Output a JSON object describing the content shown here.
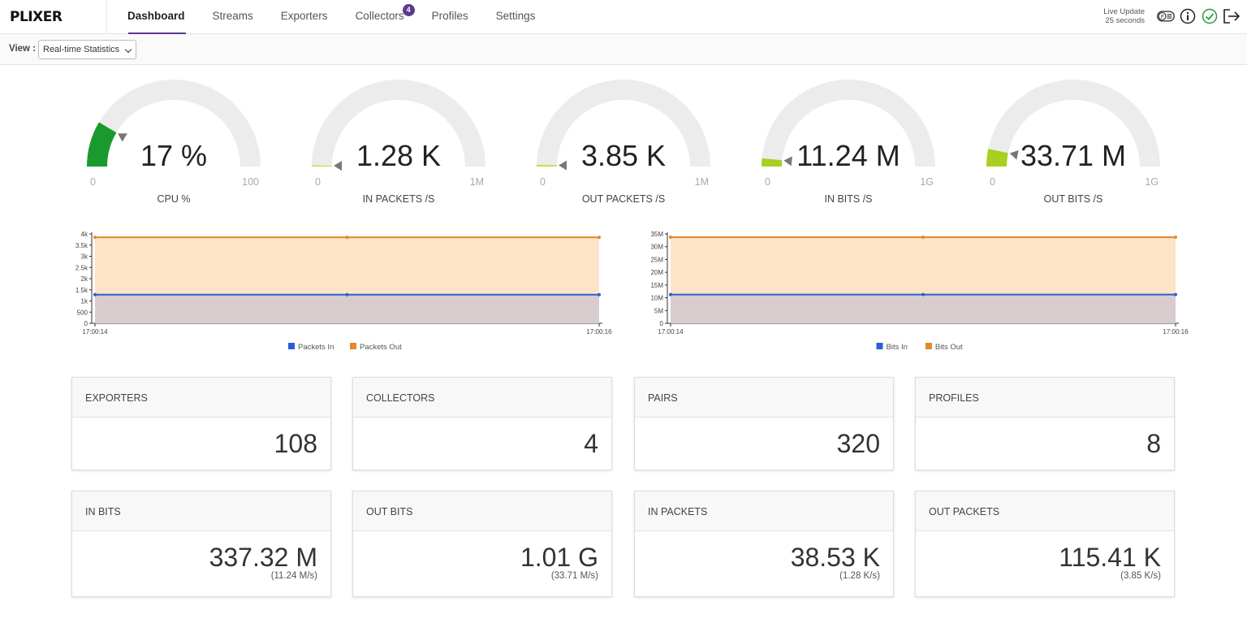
{
  "app": {
    "logo": "PLIXER"
  },
  "nav": {
    "items": [
      {
        "label": "Dashboard",
        "active": true
      },
      {
        "label": "Streams"
      },
      {
        "label": "Exporters"
      },
      {
        "label": "Collectors",
        "badge": "4"
      },
      {
        "label": "Profiles"
      },
      {
        "label": "Settings"
      }
    ]
  },
  "header": {
    "live_update_label": "Live Update",
    "live_update_value": "25 seconds",
    "icons": [
      "plugin-icon",
      "info-icon",
      "check-circle-icon",
      "logout-icon"
    ]
  },
  "view": {
    "label": "View :",
    "selected": "Real-time Statistics"
  },
  "gauges": [
    {
      "value": "17 %",
      "min": "0",
      "max": "100",
      "label": "CPU %",
      "fraction": 0.17,
      "color": "#1a9a2e"
    },
    {
      "value": "1.28 K",
      "min": "0",
      "max": "1M",
      "label": "IN PACKETS /S",
      "fraction": 0.004,
      "color": "#c8d840"
    },
    {
      "value": "3.85 K",
      "min": "0",
      "max": "1M",
      "label": "OUT PACKETS /S",
      "fraction": 0.006,
      "color": "#c8d840"
    },
    {
      "value": "11.24 M",
      "min": "0",
      "max": "1G",
      "label": "IN BITS /S",
      "fraction": 0.03,
      "color": "#a8d020"
    },
    {
      "value": "33.71 M",
      "min": "0",
      "max": "1G",
      "label": "OUT BITS /S",
      "fraction": 0.065,
      "color": "#a8d020"
    }
  ],
  "chart_data": [
    {
      "type": "area",
      "x": [
        "17:00:14",
        "17:00:15",
        "17:00:16"
      ],
      "x_tick_labels": [
        "17:00:14",
        "17:00:16"
      ],
      "y_ticks": [
        "0",
        "500",
        "1k",
        "1.5k",
        "2k",
        "2.5k",
        "3k",
        "3.5k",
        "4k"
      ],
      "ylim": [
        0,
        4000
      ],
      "series": [
        {
          "name": "Packets In",
          "values": [
            1280,
            1280,
            1280
          ],
          "color": "#2a5fd0"
        },
        {
          "name": "Packets Out",
          "values": [
            3850,
            3850,
            3850
          ],
          "color": "#e08a2a"
        }
      ],
      "legend": "bottom"
    },
    {
      "type": "area",
      "x": [
        "17:00:14",
        "17:00:15",
        "17:00:16"
      ],
      "x_tick_labels": [
        "17:00:14",
        "17:00:16"
      ],
      "y_ticks": [
        "0",
        "5M",
        "10M",
        "15M",
        "20M",
        "25M",
        "30M",
        "35M"
      ],
      "ylim": [
        0,
        35000000
      ],
      "series": [
        {
          "name": "Bits In",
          "values": [
            11240000,
            11240000,
            11240000
          ],
          "color": "#2a5fd0"
        },
        {
          "name": "Bits Out",
          "values": [
            33710000,
            33710000,
            33710000
          ],
          "color": "#e08a2a"
        }
      ],
      "legend": "bottom"
    }
  ],
  "cards": [
    {
      "title": "EXPORTERS",
      "value": "108"
    },
    {
      "title": "COLLECTORS",
      "value": "4"
    },
    {
      "title": "PAIRS",
      "value": "320"
    },
    {
      "title": "PROFILES",
      "value": "8"
    },
    {
      "title": "IN BITS",
      "value": "337.32 M",
      "sub": "(11.24 M/s)"
    },
    {
      "title": "OUT BITS",
      "value": "1.01 G",
      "sub": "(33.71 M/s)"
    },
    {
      "title": "IN PACKETS",
      "value": "38.53 K",
      "sub": "(1.28 K/s)"
    },
    {
      "title": "OUT PACKETS",
      "value": "115.41 K",
      "sub": "(3.85 K/s)"
    }
  ]
}
